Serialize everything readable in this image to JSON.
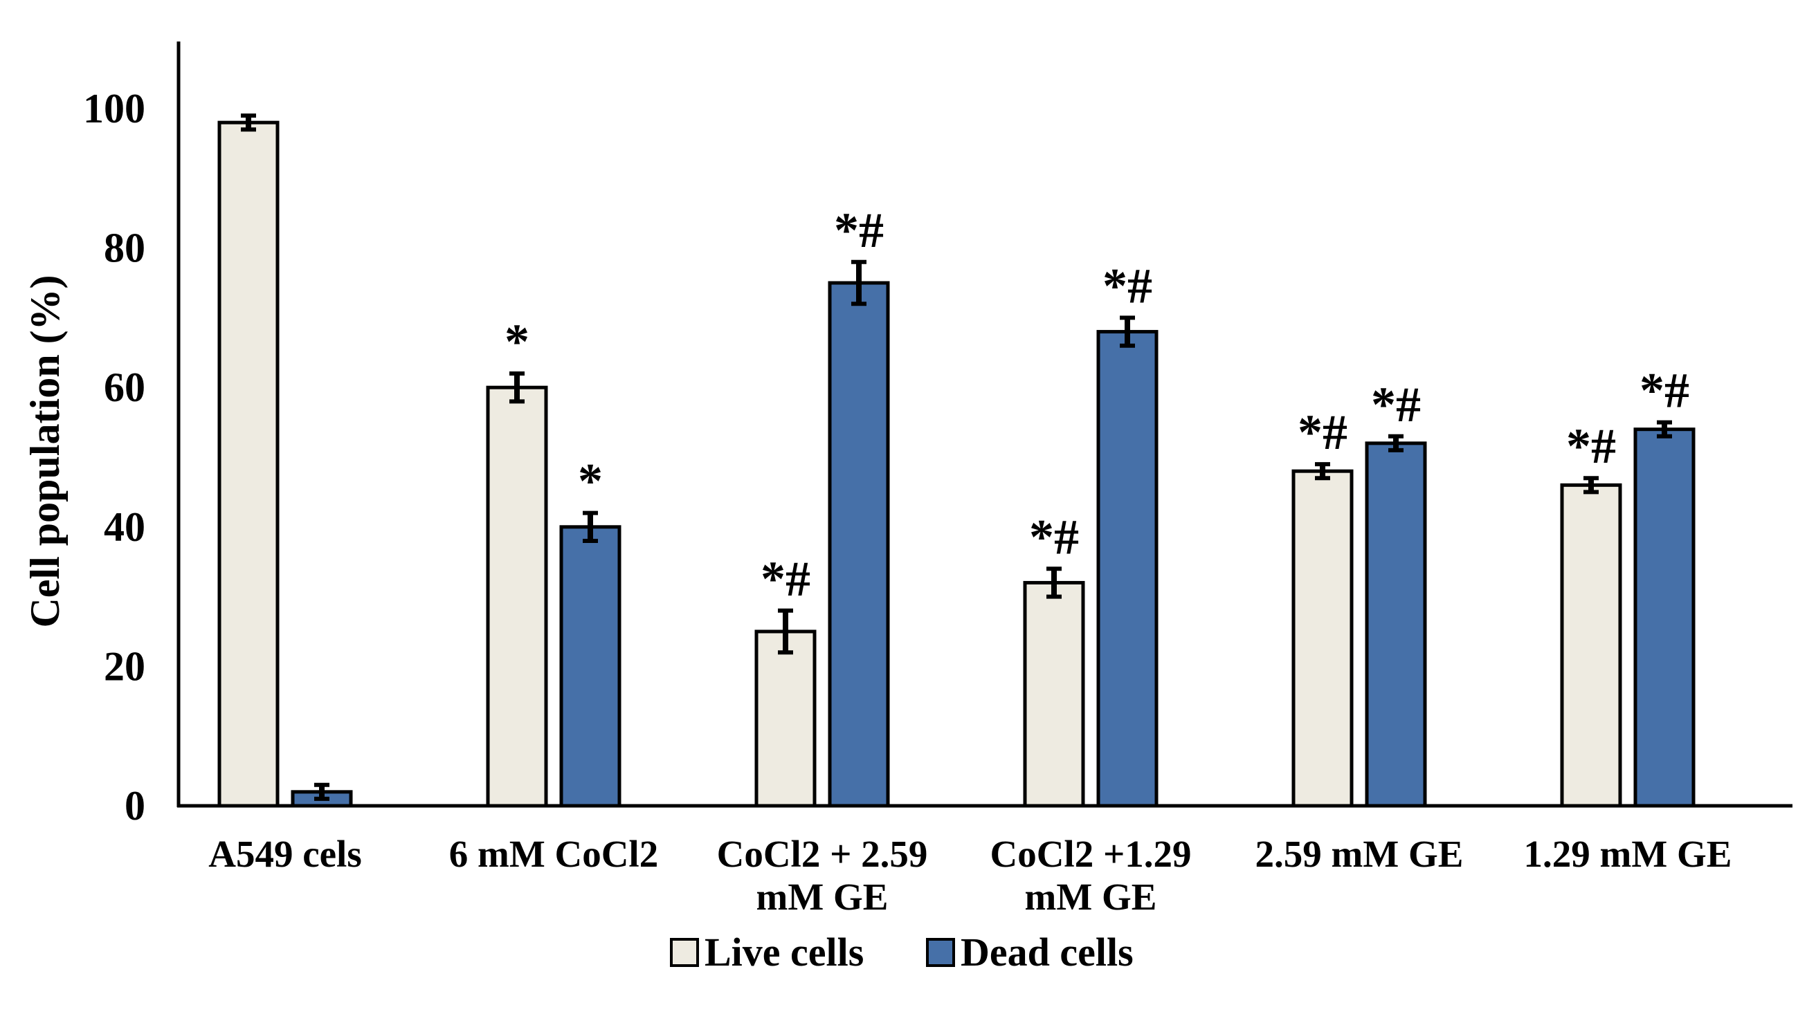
{
  "chart_data": {
    "type": "bar",
    "title": "",
    "xlabel": "",
    "ylabel": "Cell population (%)",
    "ylim": [
      0,
      110
    ],
    "yticks": [
      0,
      20,
      40,
      60,
      80,
      100
    ],
    "grid": false,
    "legend_position": "bottom-center",
    "categories": [
      [
        "A549 cels"
      ],
      [
        "6 mM CoCl2"
      ],
      [
        "CoCl2 + 2.59",
        "mM GE"
      ],
      [
        "CoCl2 +1.29",
        "mM GE"
      ],
      [
        "2.59 mM GE"
      ],
      [
        "1.29 mM GE"
      ]
    ],
    "series": [
      {
        "name": "Live cells",
        "color": "#eeebe1",
        "values": [
          98,
          60,
          25,
          32,
          48,
          46
        ],
        "errors": [
          1,
          2,
          3,
          2,
          1,
          1
        ],
        "annotations": [
          "",
          "*",
          "*#",
          "*#",
          "*#",
          "*#"
        ]
      },
      {
        "name": "Dead cells",
        "color": "#4670a8",
        "values": [
          2,
          40,
          75,
          68,
          52,
          54
        ],
        "errors": [
          1,
          2,
          3,
          2,
          1,
          1
        ],
        "annotations": [
          "",
          "*",
          "*#",
          "*#",
          "*#",
          "*#"
        ]
      }
    ]
  }
}
